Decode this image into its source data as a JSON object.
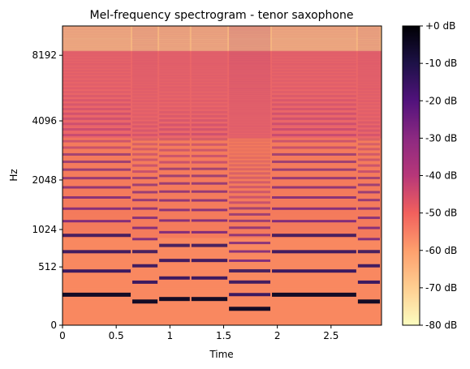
{
  "chart_data": {
    "type": "heatmap",
    "title": "Mel-frequency spectrogram - tenor saxophone",
    "xlabel": "Time",
    "ylabel": "Hz",
    "xlim": [
      0,
      2.97
    ],
    "xticks": [
      {
        "value": 0,
        "label": "0"
      },
      {
        "value": 0.5,
        "label": "0.5"
      },
      {
        "value": 1,
        "label": "1"
      },
      {
        "value": 1.5,
        "label": "1.5"
      },
      {
        "value": 2,
        "label": "2"
      },
      {
        "value": 2.5,
        "label": "2.5"
      }
    ],
    "yscale": "mel",
    "ylim": [
      0,
      11025
    ],
    "yticks": [
      {
        "value": 0,
        "label": "0"
      },
      {
        "value": 512,
        "label": "512"
      },
      {
        "value": 1024,
        "label": "1024"
      },
      {
        "value": 2048,
        "label": "2048"
      },
      {
        "value": 4096,
        "label": "4096"
      },
      {
        "value": 8192,
        "label": "8192"
      }
    ],
    "colormap": "magma",
    "colorbar": {
      "range": [
        -80,
        0
      ],
      "ticks": [
        {
          "value": 0,
          "label": "+0 dB"
        },
        {
          "value": -10,
          "label": "-10 dB"
        },
        {
          "value": -20,
          "label": "-20 dB"
        },
        {
          "value": -30,
          "label": "-30 dB"
        },
        {
          "value": -40,
          "label": "-40 dB"
        },
        {
          "value": -50,
          "label": "-50 dB"
        },
        {
          "value": -60,
          "label": "-60 dB"
        },
        {
          "value": -70,
          "label": "-70 dB"
        },
        {
          "value": -80,
          "label": "-80 dB"
        }
      ]
    },
    "notes": [
      {
        "start": 0.0,
        "end": 0.65,
        "f0_hz": 233
      },
      {
        "start": 0.65,
        "end": 0.9,
        "f0_hz": 175
      },
      {
        "start": 0.9,
        "end": 1.2,
        "f0_hz": 196
      },
      {
        "start": 1.2,
        "end": 1.55,
        "f0_hz": 196
      },
      {
        "start": 1.55,
        "end": 1.95,
        "f0_hz": 117
      },
      {
        "start": 1.95,
        "end": 2.75,
        "f0_hz": 233
      },
      {
        "start": 2.75,
        "end": 2.97,
        "f0_hz": 175
      }
    ]
  }
}
